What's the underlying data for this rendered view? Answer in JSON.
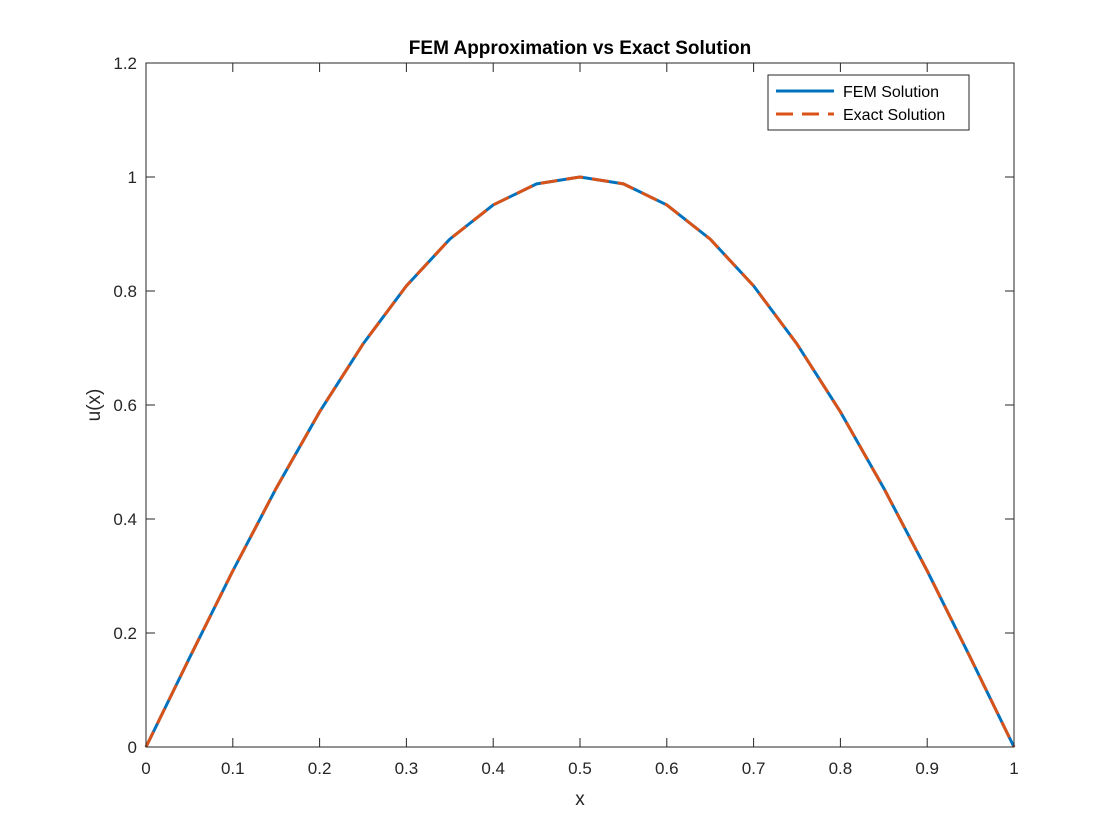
{
  "chart_data": {
    "type": "line",
    "title": "FEM Approximation vs Exact Solution",
    "xlabel": "x",
    "ylabel": "u(x)",
    "xlim": [
      0,
      1
    ],
    "ylim": [
      0,
      1.2
    ],
    "xticks": [
      0,
      0.1,
      0.2,
      0.3,
      0.4,
      0.5,
      0.6,
      0.7,
      0.8,
      0.9,
      1
    ],
    "xtick_labels": [
      "0",
      "0.1",
      "0.2",
      "0.3",
      "0.4",
      "0.5",
      "0.6",
      "0.7",
      "0.8",
      "0.9",
      "1"
    ],
    "yticks": [
      0,
      0.2,
      0.4,
      0.6,
      0.8,
      1,
      1.2
    ],
    "ytick_labels": [
      "0",
      "0.2",
      "0.4",
      "0.6",
      "0.8",
      "1",
      "1.2"
    ],
    "grid": false,
    "legend_position": "top-right",
    "series": [
      {
        "name": "FEM Solution",
        "style": "solid",
        "color": "#0072BD",
        "x": [
          0,
          0.05,
          0.1,
          0.15,
          0.2,
          0.25,
          0.3,
          0.35,
          0.4,
          0.45,
          0.5,
          0.55,
          0.6,
          0.65,
          0.7,
          0.75,
          0.8,
          0.85,
          0.9,
          0.95,
          1
        ],
        "y": [
          0,
          0.156,
          0.309,
          0.454,
          0.588,
          0.707,
          0.809,
          0.891,
          0.951,
          0.988,
          1,
          0.988,
          0.951,
          0.891,
          0.809,
          0.707,
          0.588,
          0.454,
          0.309,
          0.156,
          0
        ]
      },
      {
        "name": "Exact Solution",
        "style": "dashed",
        "color": "#D95319",
        "x": [
          0,
          0.05,
          0.1,
          0.15,
          0.2,
          0.25,
          0.3,
          0.35,
          0.4,
          0.45,
          0.5,
          0.55,
          0.6,
          0.65,
          0.7,
          0.75,
          0.8,
          0.85,
          0.9,
          0.95,
          1
        ],
        "y": [
          0,
          0.156,
          0.309,
          0.454,
          0.588,
          0.707,
          0.809,
          0.891,
          0.951,
          0.988,
          1,
          0.988,
          0.951,
          0.891,
          0.809,
          0.707,
          0.588,
          0.454,
          0.309,
          0.156,
          0
        ]
      }
    ]
  }
}
